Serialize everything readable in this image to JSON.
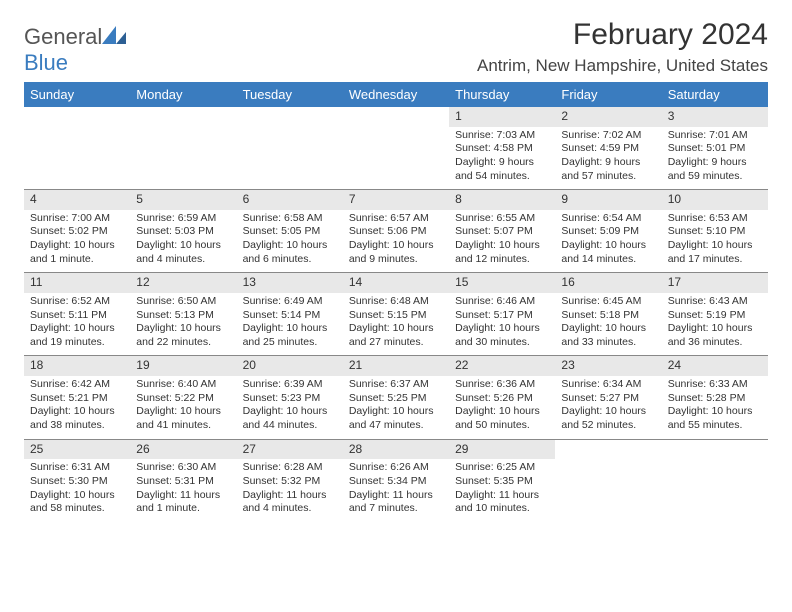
{
  "logo": {
    "word1": "General",
    "word2": "Blue"
  },
  "title": "February 2024",
  "location": "Antrim, New Hampshire, United States",
  "colors": {
    "header_bg": "#3a7cbf",
    "header_text": "#ffffff",
    "daynum_bg": "#e8e8e8",
    "border": "#888888",
    "text": "#333333",
    "logo_gray": "#555555",
    "logo_blue": "#3a7cbf"
  },
  "day_headers": [
    "Sunday",
    "Monday",
    "Tuesday",
    "Wednesday",
    "Thursday",
    "Friday",
    "Saturday"
  ],
  "weeks": [
    [
      null,
      null,
      null,
      null,
      {
        "n": "1",
        "sr": "Sunrise: 7:03 AM",
        "ss": "Sunset: 4:58 PM",
        "dl": "Daylight: 9 hours and 54 minutes."
      },
      {
        "n": "2",
        "sr": "Sunrise: 7:02 AM",
        "ss": "Sunset: 4:59 PM",
        "dl": "Daylight: 9 hours and 57 minutes."
      },
      {
        "n": "3",
        "sr": "Sunrise: 7:01 AM",
        "ss": "Sunset: 5:01 PM",
        "dl": "Daylight: 9 hours and 59 minutes."
      }
    ],
    [
      {
        "n": "4",
        "sr": "Sunrise: 7:00 AM",
        "ss": "Sunset: 5:02 PM",
        "dl": "Daylight: 10 hours and 1 minute."
      },
      {
        "n": "5",
        "sr": "Sunrise: 6:59 AM",
        "ss": "Sunset: 5:03 PM",
        "dl": "Daylight: 10 hours and 4 minutes."
      },
      {
        "n": "6",
        "sr": "Sunrise: 6:58 AM",
        "ss": "Sunset: 5:05 PM",
        "dl": "Daylight: 10 hours and 6 minutes."
      },
      {
        "n": "7",
        "sr": "Sunrise: 6:57 AM",
        "ss": "Sunset: 5:06 PM",
        "dl": "Daylight: 10 hours and 9 minutes."
      },
      {
        "n": "8",
        "sr": "Sunrise: 6:55 AM",
        "ss": "Sunset: 5:07 PM",
        "dl": "Daylight: 10 hours and 12 minutes."
      },
      {
        "n": "9",
        "sr": "Sunrise: 6:54 AM",
        "ss": "Sunset: 5:09 PM",
        "dl": "Daylight: 10 hours and 14 minutes."
      },
      {
        "n": "10",
        "sr": "Sunrise: 6:53 AM",
        "ss": "Sunset: 5:10 PM",
        "dl": "Daylight: 10 hours and 17 minutes."
      }
    ],
    [
      {
        "n": "11",
        "sr": "Sunrise: 6:52 AM",
        "ss": "Sunset: 5:11 PM",
        "dl": "Daylight: 10 hours and 19 minutes."
      },
      {
        "n": "12",
        "sr": "Sunrise: 6:50 AM",
        "ss": "Sunset: 5:13 PM",
        "dl": "Daylight: 10 hours and 22 minutes."
      },
      {
        "n": "13",
        "sr": "Sunrise: 6:49 AM",
        "ss": "Sunset: 5:14 PM",
        "dl": "Daylight: 10 hours and 25 minutes."
      },
      {
        "n": "14",
        "sr": "Sunrise: 6:48 AM",
        "ss": "Sunset: 5:15 PM",
        "dl": "Daylight: 10 hours and 27 minutes."
      },
      {
        "n": "15",
        "sr": "Sunrise: 6:46 AM",
        "ss": "Sunset: 5:17 PM",
        "dl": "Daylight: 10 hours and 30 minutes."
      },
      {
        "n": "16",
        "sr": "Sunrise: 6:45 AM",
        "ss": "Sunset: 5:18 PM",
        "dl": "Daylight: 10 hours and 33 minutes."
      },
      {
        "n": "17",
        "sr": "Sunrise: 6:43 AM",
        "ss": "Sunset: 5:19 PM",
        "dl": "Daylight: 10 hours and 36 minutes."
      }
    ],
    [
      {
        "n": "18",
        "sr": "Sunrise: 6:42 AM",
        "ss": "Sunset: 5:21 PM",
        "dl": "Daylight: 10 hours and 38 minutes."
      },
      {
        "n": "19",
        "sr": "Sunrise: 6:40 AM",
        "ss": "Sunset: 5:22 PM",
        "dl": "Daylight: 10 hours and 41 minutes."
      },
      {
        "n": "20",
        "sr": "Sunrise: 6:39 AM",
        "ss": "Sunset: 5:23 PM",
        "dl": "Daylight: 10 hours and 44 minutes."
      },
      {
        "n": "21",
        "sr": "Sunrise: 6:37 AM",
        "ss": "Sunset: 5:25 PM",
        "dl": "Daylight: 10 hours and 47 minutes."
      },
      {
        "n": "22",
        "sr": "Sunrise: 6:36 AM",
        "ss": "Sunset: 5:26 PM",
        "dl": "Daylight: 10 hours and 50 minutes."
      },
      {
        "n": "23",
        "sr": "Sunrise: 6:34 AM",
        "ss": "Sunset: 5:27 PM",
        "dl": "Daylight: 10 hours and 52 minutes."
      },
      {
        "n": "24",
        "sr": "Sunrise: 6:33 AM",
        "ss": "Sunset: 5:28 PM",
        "dl": "Daylight: 10 hours and 55 minutes."
      }
    ],
    [
      {
        "n": "25",
        "sr": "Sunrise: 6:31 AM",
        "ss": "Sunset: 5:30 PM",
        "dl": "Daylight: 10 hours and 58 minutes."
      },
      {
        "n": "26",
        "sr": "Sunrise: 6:30 AM",
        "ss": "Sunset: 5:31 PM",
        "dl": "Daylight: 11 hours and 1 minute."
      },
      {
        "n": "27",
        "sr": "Sunrise: 6:28 AM",
        "ss": "Sunset: 5:32 PM",
        "dl": "Daylight: 11 hours and 4 minutes."
      },
      {
        "n": "28",
        "sr": "Sunrise: 6:26 AM",
        "ss": "Sunset: 5:34 PM",
        "dl": "Daylight: 11 hours and 7 minutes."
      },
      {
        "n": "29",
        "sr": "Sunrise: 6:25 AM",
        "ss": "Sunset: 5:35 PM",
        "dl": "Daylight: 11 hours and 10 minutes."
      },
      null,
      null
    ]
  ]
}
